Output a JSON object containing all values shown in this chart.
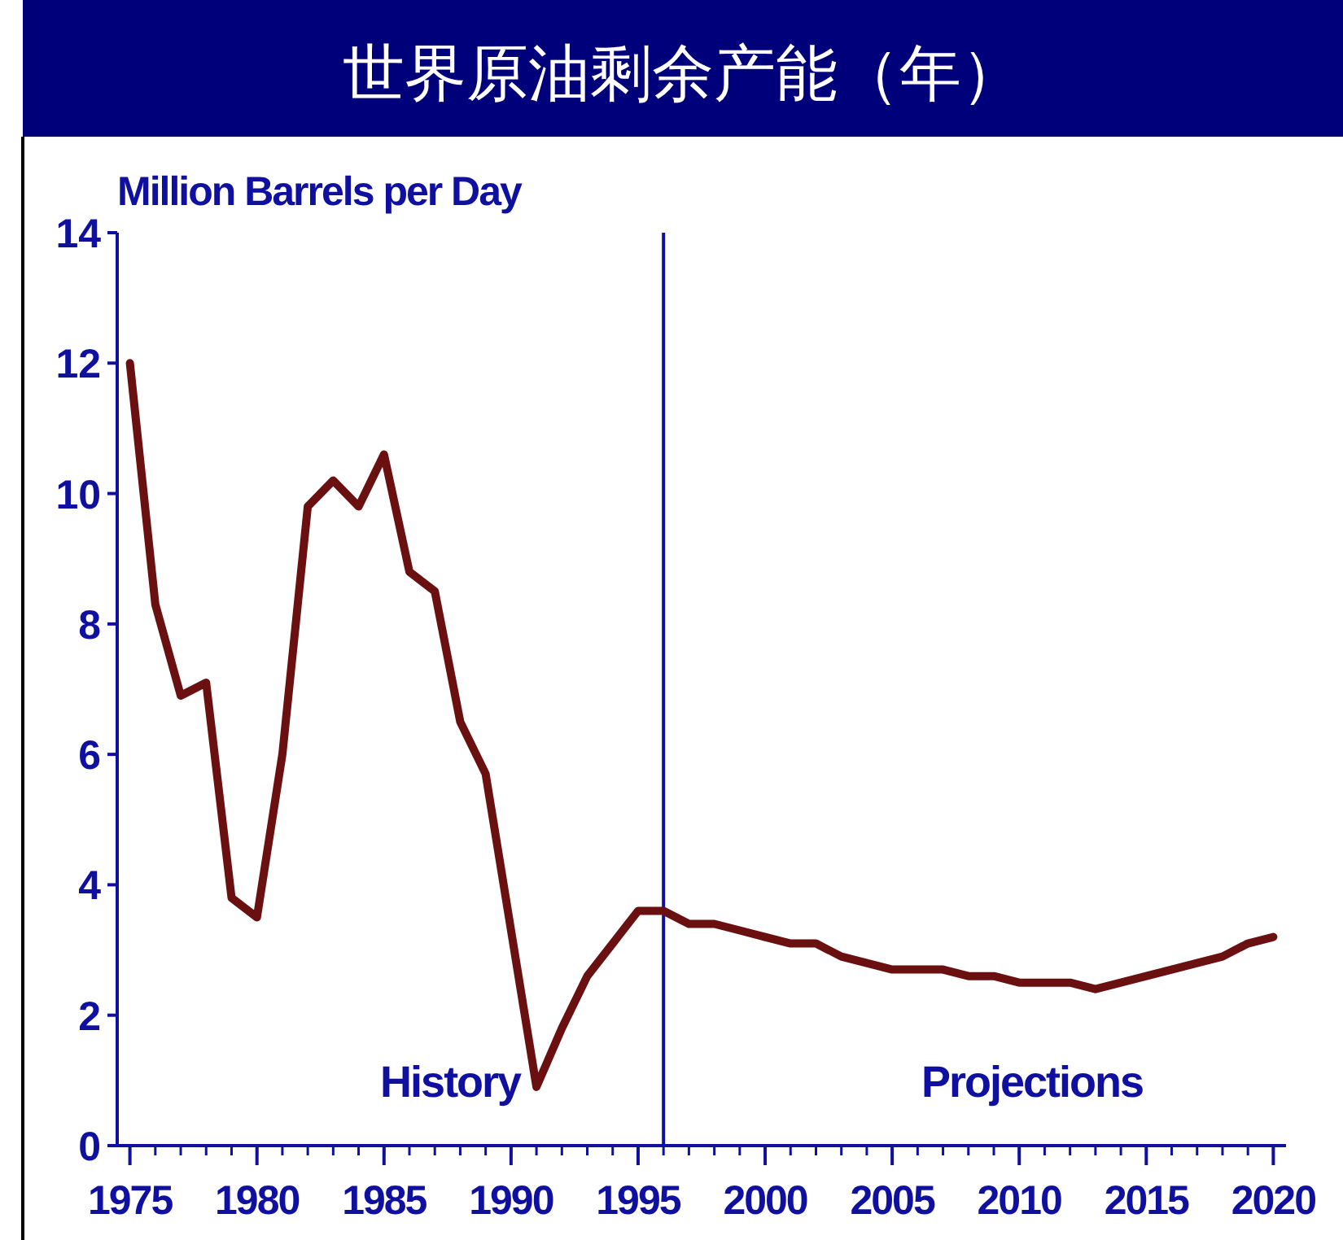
{
  "chart_data": {
    "type": "line",
    "title": "世界原油剩余产能（年）",
    "ylabel": "Million Barrels per Day",
    "x": [
      1975,
      1976,
      1977,
      1978,
      1979,
      1980,
      1981,
      1982,
      1983,
      1984,
      1985,
      1986,
      1987,
      1988,
      1989,
      1990,
      1991,
      1992,
      1993,
      1994,
      1995,
      1996,
      1997,
      1998,
      1999,
      2000,
      2001,
      2002,
      2003,
      2004,
      2005,
      2006,
      2007,
      2008,
      2009,
      2010,
      2011,
      2012,
      2013,
      2014,
      2015,
      2016,
      2017,
      2018,
      2019,
      2020
    ],
    "series": [
      {
        "color": "#6b1010",
        "values": [
          12.0,
          8.3,
          6.9,
          7.1,
          3.8,
          3.5,
          6.0,
          9.8,
          10.2,
          9.8,
          10.6,
          8.8,
          8.5,
          6.5,
          5.7,
          3.3,
          0.9,
          1.8,
          2.6,
          3.1,
          3.6,
          3.6,
          3.4,
          3.4,
          3.3,
          3.2,
          3.1,
          3.1,
          2.9,
          2.8,
          2.7,
          2.7,
          2.7,
          2.6,
          2.6,
          2.5,
          2.5,
          2.5,
          2.4,
          2.5,
          2.6,
          2.7,
          2.8,
          2.9,
          3.1,
          3.2
        ]
      }
    ],
    "xlim": [
      1974.5,
      2020.5
    ],
    "ylim": [
      0,
      14
    ],
    "xticks": [
      1975,
      1980,
      1985,
      1990,
      1995,
      2000,
      2005,
      2010,
      2015,
      2020
    ],
    "yticks": [
      0,
      2,
      4,
      6,
      8,
      10,
      12,
      14
    ],
    "ref_lines": [
      {
        "axis": "x",
        "value": 1996,
        "color": "#1010a0"
      }
    ],
    "annotations": [
      "History",
      "Projections"
    ],
    "grid": false,
    "marker": "none",
    "line_style": "solid"
  }
}
